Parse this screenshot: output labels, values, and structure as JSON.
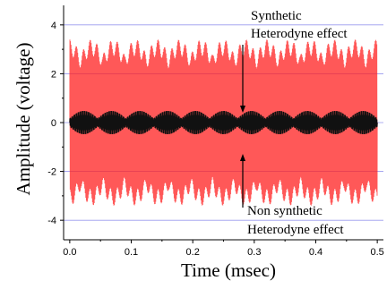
{
  "chart_data": {
    "type": "line",
    "xlabel": "Time (msec)",
    "ylabel": "Amplitude (voltage)",
    "xlim": [
      -0.01,
      0.51
    ],
    "ylim": [
      -4.8,
      4.8
    ],
    "x_ticks": [
      "0.0",
      "0.1",
      "0.2",
      "0.3",
      "0.4",
      "0.5"
    ],
    "y_ticks": [
      "4",
      "2",
      "0",
      "-2",
      "-4"
    ],
    "grid": "horizontal at y = 4, 2, 0, -2, -4",
    "series": [
      {
        "color": "#ff2020",
        "description_values": {
          "x_start": 0.0,
          "x_end": 0.5,
          "envelope_max": 3.4,
          "envelope_min": -3.3,
          "beat_envelope_high": 2.3,
          "beat_envelope_low": -2.3
        }
      },
      {
        "color": "#111111",
        "description_values": {
          "x_start": 0.0,
          "x_end": 0.5,
          "amplitude": 0.5
        }
      }
    ],
    "annotations": [
      {
        "lines": [
          "Synthetic",
          "Heterodyne effect"
        ],
        "arrow_target": {
          "x": 0.28,
          "y": 0.3
        }
      },
      {
        "lines": [
          "Non synthetic",
          "Heterodyne effect"
        ],
        "arrow_target": {
          "x": 0.28,
          "y": -1.7
        }
      }
    ]
  },
  "colors": {
    "signal_red": "#ff2020",
    "signal_black": "#111111",
    "grid": "#9999ee"
  }
}
